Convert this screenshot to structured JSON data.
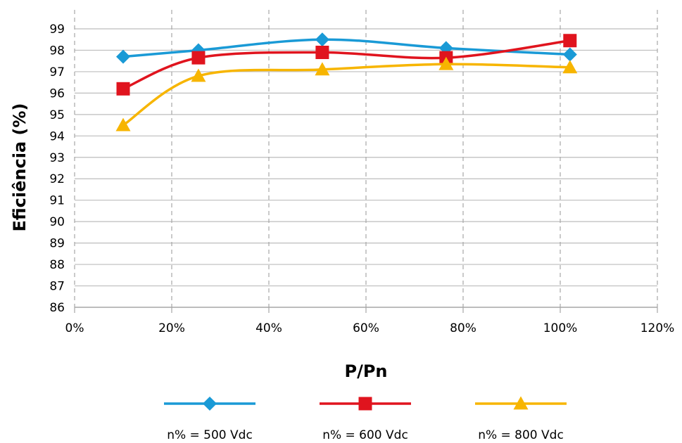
{
  "chart_data": {
    "type": "line",
    "title": "",
    "xlabel": "P/Pn",
    "ylabel": "Eficiência (%)",
    "xlim": [
      0,
      120
    ],
    "ylim": [
      86,
      99
    ],
    "x_ticks": [
      "0%",
      "20%",
      "40%",
      "60%",
      "80%",
      "100%",
      "120%"
    ],
    "y_ticks": [
      "86",
      "87",
      "88",
      "89",
      "90",
      "91",
      "92",
      "93",
      "94",
      "95",
      "96",
      "97",
      "98",
      "99"
    ],
    "grid": {
      "horizontal": "solid",
      "vertical": "dashed"
    },
    "legend_position": "bottom",
    "series": [
      {
        "name": "n% = 500 Vdc",
        "color": "#1a9ad6",
        "marker": "diamond",
        "x": [
          10,
          25.5,
          51,
          76.5,
          102
        ],
        "y": [
          97.7,
          98.0,
          98.5,
          98.1,
          97.8
        ]
      },
      {
        "name": "n% = 600 Vdc",
        "color": "#e0141e",
        "marker": "square",
        "x": [
          10,
          25.5,
          51,
          76.5,
          102
        ],
        "y": [
          96.2,
          97.65,
          97.9,
          97.65,
          98.45
        ]
      },
      {
        "name": "n% = 800 Vdc",
        "color": "#f7b500",
        "marker": "triangle",
        "x": [
          10,
          25.5,
          51,
          76.5,
          102
        ],
        "y": [
          94.5,
          96.8,
          97.1,
          97.35,
          97.2
        ]
      }
    ]
  }
}
